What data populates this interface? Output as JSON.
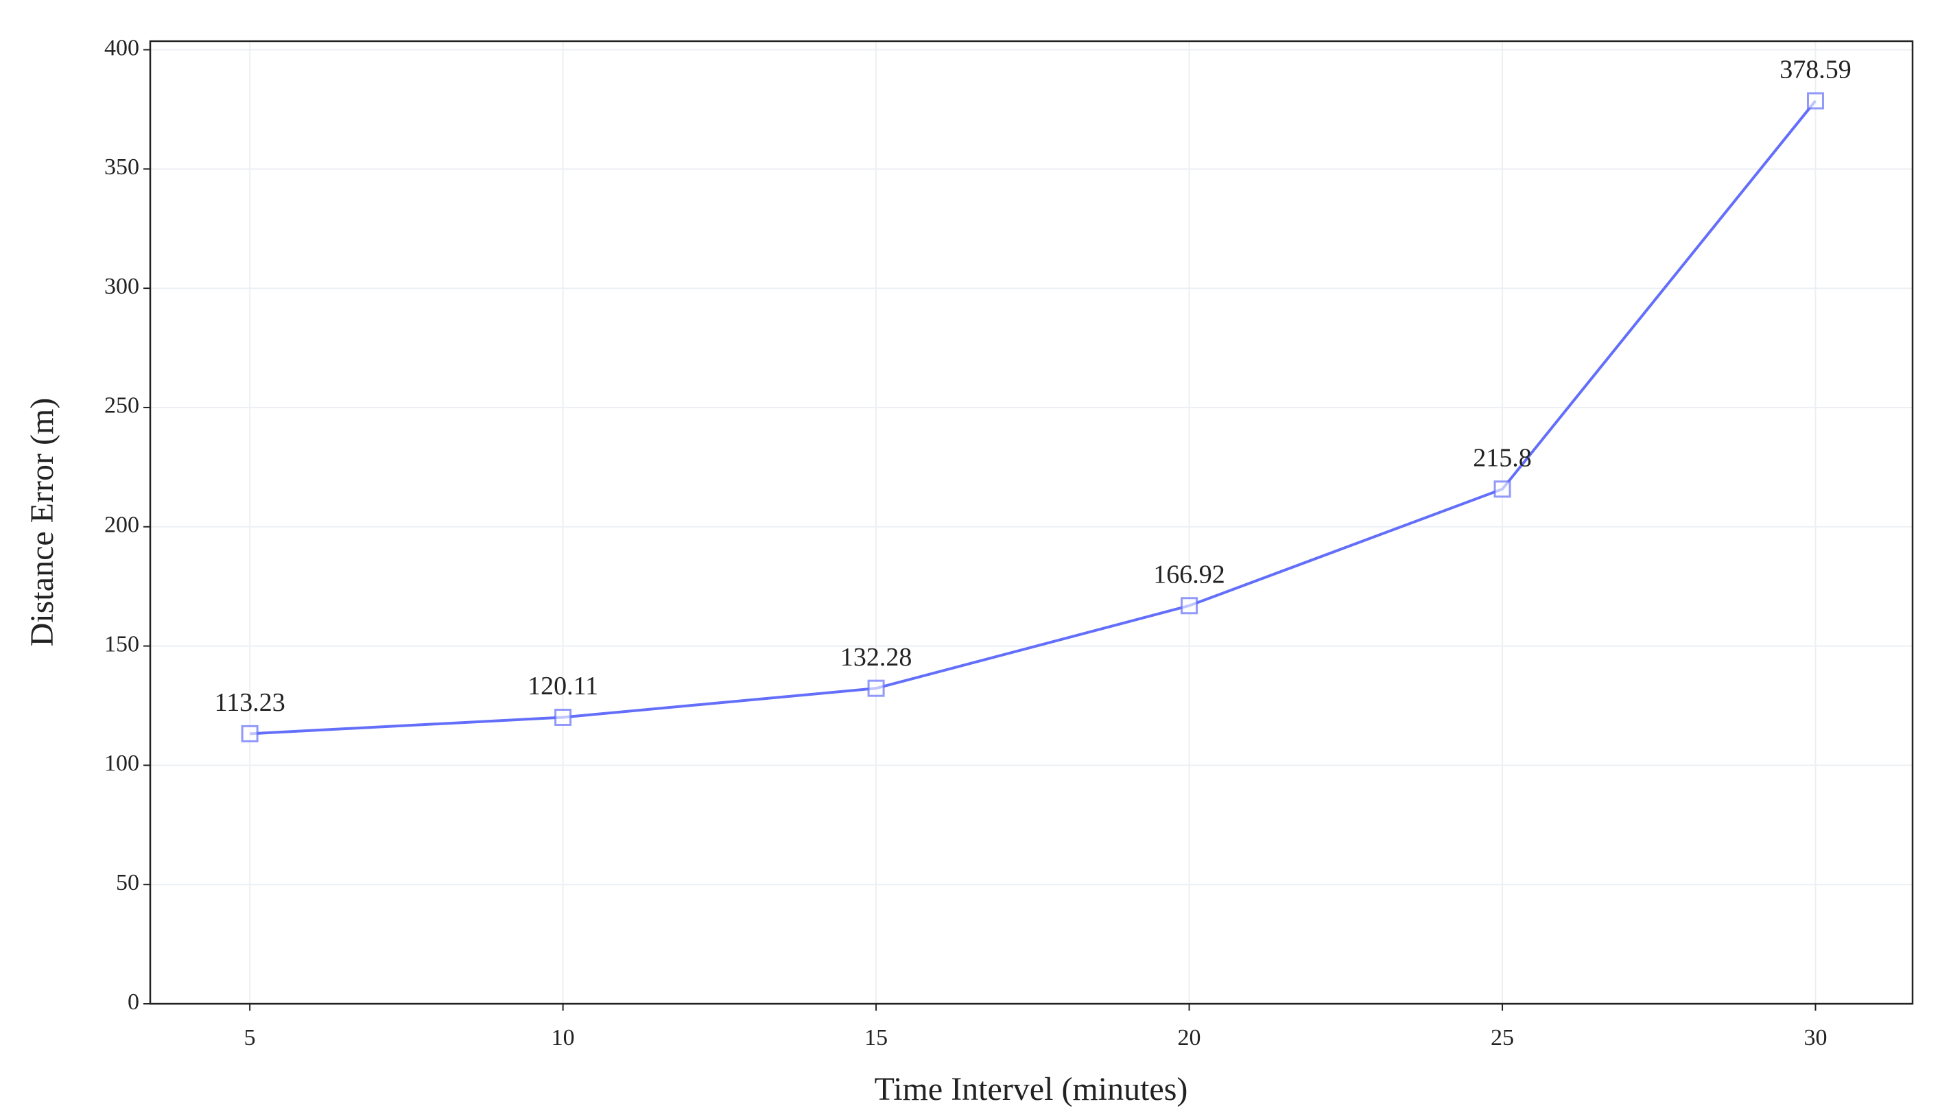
{
  "chart_data": {
    "type": "line",
    "x_label": "Time Intervel (minutes)",
    "y_label": "Distance Error (m)",
    "x": [
      5,
      10,
      15,
      20,
      25,
      30
    ],
    "values": [
      113.23,
      120.11,
      132.28,
      166.92,
      215.8,
      378.59
    ],
    "color": "#636efa",
    "xlim": [
      3.41,
      31.55
    ],
    "xticks": [
      5,
      10,
      15,
      20,
      25,
      30
    ],
    "ylim": [
      0,
      403.6
    ],
    "yticks": [
      0,
      50,
      100,
      150,
      200,
      250,
      300,
      350,
      400
    ],
    "grid": true
  }
}
